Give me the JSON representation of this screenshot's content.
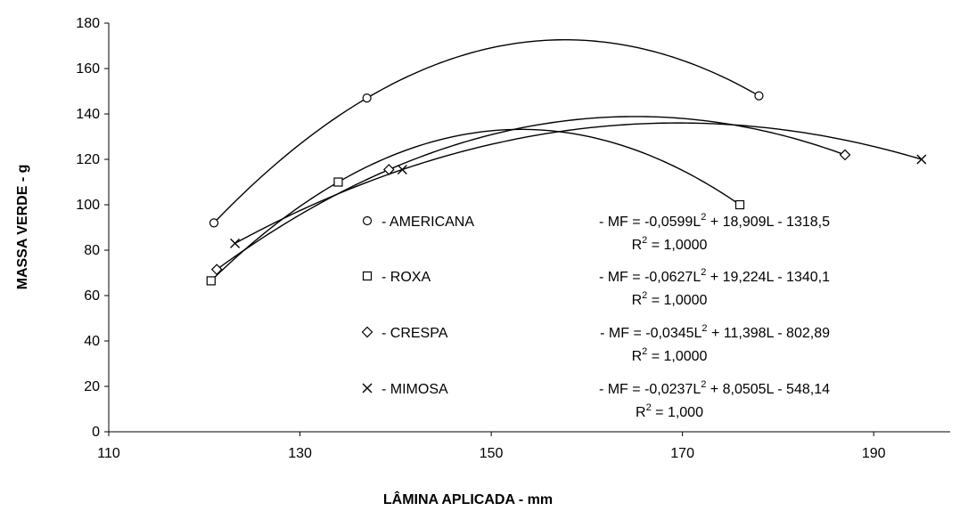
{
  "chart_data": {
    "type": "scatter",
    "xlabel": "LÂMINA APLICADA - mm",
    "ylabel": "MASSA VERDE - g",
    "xlim": [
      110,
      198
    ],
    "ylim": [
      0,
      180
    ],
    "x_ticks": [
      "110",
      "130",
      "150",
      "170",
      "190"
    ],
    "y_ticks": [
      "0",
      "20",
      "40",
      "60",
      "80",
      "100",
      "120",
      "140",
      "160",
      "180"
    ],
    "grid": false,
    "legend_position": "inside-lower-center",
    "series": [
      {
        "name": "AMERICANA",
        "marker": "circle",
        "legend_label": "- AMERICANA",
        "equation": "- MF = -0,0599L",
        "equation_sup": "2",
        "equation_rest": " + 18,909L - 1318,5",
        "r2_label": "R",
        "r2_sup": "2",
        "r2_value": " = 1,0000",
        "points": [
          [
            121,
            92
          ],
          [
            137,
            147
          ],
          [
            178,
            148
          ]
        ],
        "coeffs": [
          -0.0599,
          18.909,
          -1318.5
        ]
      },
      {
        "name": "ROXA",
        "marker": "square",
        "legend_label": "- ROXA",
        "equation": "- MF = -0,0627L",
        "equation_sup": "2",
        "equation_rest": " + 19,224L - 1340,1",
        "r2_label": "R",
        "r2_sup": "2",
        "r2_value": " = 1,0000",
        "points": [
          [
            120.7,
            66.5
          ],
          [
            134,
            110
          ],
          [
            176,
            100
          ]
        ],
        "coeffs": [
          -0.0627,
          19.224,
          -1340.1
        ]
      },
      {
        "name": "CRESPA",
        "marker": "diamond",
        "legend_label": "- CRESPA",
        "equation": "- MF = -0,0345L",
        "equation_sup": "2",
        "equation_rest": " + 11,398L - 802,89",
        "r2_label": "R",
        "r2_sup": "2",
        "r2_value": " = 1,0000",
        "points": [
          [
            121.3,
            71.5
          ],
          [
            139.3,
            115.5
          ],
          [
            187,
            122
          ]
        ],
        "coeffs": [
          -0.0345,
          11.398,
          -802.89
        ]
      },
      {
        "name": "MIMOSA",
        "marker": "x",
        "legend_label": "- MIMOSA",
        "equation": "- MF = -0,0237L",
        "equation_sup": "2",
        "equation_rest": " + 8,0505L - 548,14",
        "r2_label": "R",
        "r2_sup": "2",
        "r2_value": " = 1,000",
        "points": [
          [
            123.2,
            83
          ],
          [
            140.7,
            115.5
          ],
          [
            195,
            120
          ]
        ],
        "coeffs": [
          -0.0237,
          8.0505,
          -548.14
        ]
      }
    ]
  }
}
